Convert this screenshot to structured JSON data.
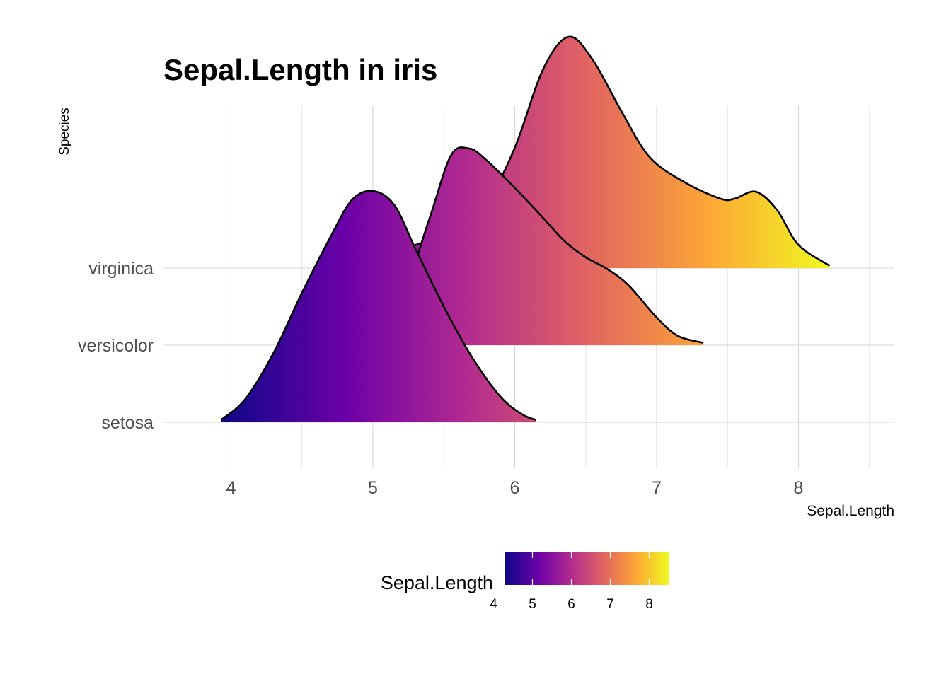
{
  "chart_data": {
    "type": "ridgeline",
    "title": "Sepal.Length in iris",
    "xlabel": "Sepal.Length",
    "ylabel": "Species",
    "xlim": [
      3.5,
      8.6
    ],
    "x_ticks": [
      "4",
      "5",
      "6",
      "7",
      "8"
    ],
    "x_tick_values": [
      4,
      5,
      6,
      7,
      8
    ],
    "categories": [
      "setosa",
      "versicolor",
      "virginica"
    ],
    "grid": true,
    "fill": "gradient by Sepal.Length (plasma palette)",
    "series": [
      {
        "name": "setosa",
        "x": [
          3.93,
          4.1,
          4.3,
          4.5,
          4.7,
          4.85,
          5.0,
          5.15,
          5.3,
          5.5,
          5.7,
          5.9,
          6.05,
          6.15
        ],
        "density": [
          0.01,
          0.1,
          0.3,
          0.56,
          0.8,
          0.96,
          1.0,
          0.94,
          0.75,
          0.5,
          0.28,
          0.11,
          0.035,
          0.01
        ]
      },
      {
        "name": "versicolor",
        "x": [
          4.82,
          5.0,
          5.2,
          5.4,
          5.55,
          5.68,
          5.8,
          6.0,
          6.2,
          6.35,
          6.5,
          6.65,
          6.8,
          7.0,
          7.15,
          7.33
        ],
        "density": [
          0.02,
          0.06,
          0.2,
          0.55,
          0.82,
          0.85,
          0.8,
          0.68,
          0.55,
          0.45,
          0.38,
          0.33,
          0.26,
          0.12,
          0.04,
          0.01
        ]
      },
      {
        "name": "virginica",
        "x": [
          4.6,
          4.8,
          5.0,
          5.3,
          5.6,
          5.8,
          6.0,
          6.2,
          6.38,
          6.55,
          6.75,
          6.95,
          7.2,
          7.45,
          7.55,
          7.7,
          7.85,
          8.0,
          8.22
        ],
        "density": [
          0.01,
          0.03,
          0.06,
          0.1,
          0.17,
          0.28,
          0.52,
          0.86,
          1.0,
          0.9,
          0.68,
          0.48,
          0.37,
          0.3,
          0.3,
          0.33,
          0.25,
          0.1,
          0.01
        ]
      }
    ],
    "legend": {
      "title": "Sepal.Length",
      "position": "bottom",
      "ticks": [
        "4",
        "5",
        "6",
        "7",
        "8"
      ],
      "tick_values": [
        4,
        5,
        6,
        7,
        8
      ],
      "range": [
        4.3,
        8.5
      ]
    },
    "palette": [
      "#0D0887",
      "#6A00A8",
      "#B12A90",
      "#E16462",
      "#FCA636",
      "#F0F921"
    ]
  }
}
